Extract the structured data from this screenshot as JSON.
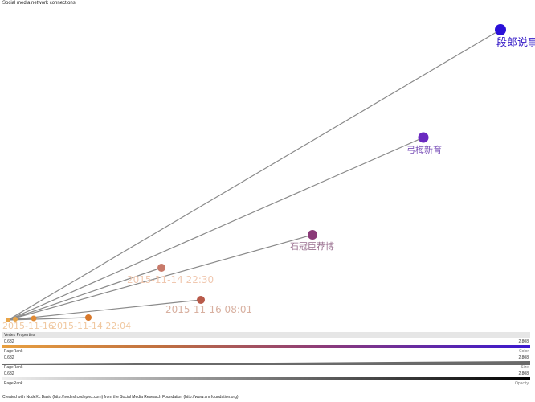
{
  "header": {
    "title": "Social media network connections"
  },
  "graph": {
    "edge_color": "#8a8a8a",
    "hub_color": "#e8a448",
    "nodes": [
      {
        "id": "n1",
        "label": "段郎说事",
        "color": "#2a10d8",
        "label_color": "#3a20c8"
      },
      {
        "id": "n2",
        "label": "弓梅新育",
        "color": "#6a2ac0",
        "label_color": "#7a50b8"
      },
      {
        "id": "n3",
        "label": "石冠臣荐博",
        "color": "#8a3a78",
        "label_color": "#9a7090"
      },
      {
        "id": "n4",
        "label": "2015-11-14 22:30",
        "color": "#c87a6a",
        "label_color": "#f0c8b0"
      },
      {
        "id": "n5",
        "label": "2015-11-16 08:01",
        "color": "#b85a4a",
        "label_color": "#d8b0a0"
      },
      {
        "id": "n6",
        "label": "2015-11-14 22:04",
        "color": "#d8782a",
        "label_color": "#f0c8a0"
      },
      {
        "id": "n7",
        "label": "2015-11-16",
        "color": "#e08a34",
        "label_color": "#f0c8a0"
      },
      {
        "id": "n8",
        "label": "",
        "color": "#e8a448",
        "label_color": "#f0c8a0"
      }
    ]
  },
  "legend": {
    "header": "Vertex Properties",
    "rows": [
      {
        "min": "0.632",
        "max": "2.808",
        "property": "PageRank",
        "kind": "Color"
      },
      {
        "min": "0.632",
        "max": "2.808",
        "property": "PageRank",
        "kind": "Size"
      },
      {
        "min": "0.632",
        "max": "2.808",
        "property": "PageRank",
        "kind": "Opacity"
      }
    ]
  },
  "footer": {
    "text": "Created with NodeXL Basic (http://nodexl.codeplex.com) from the Social Media Research Foundation (http://www.smrfoundation.org)"
  }
}
